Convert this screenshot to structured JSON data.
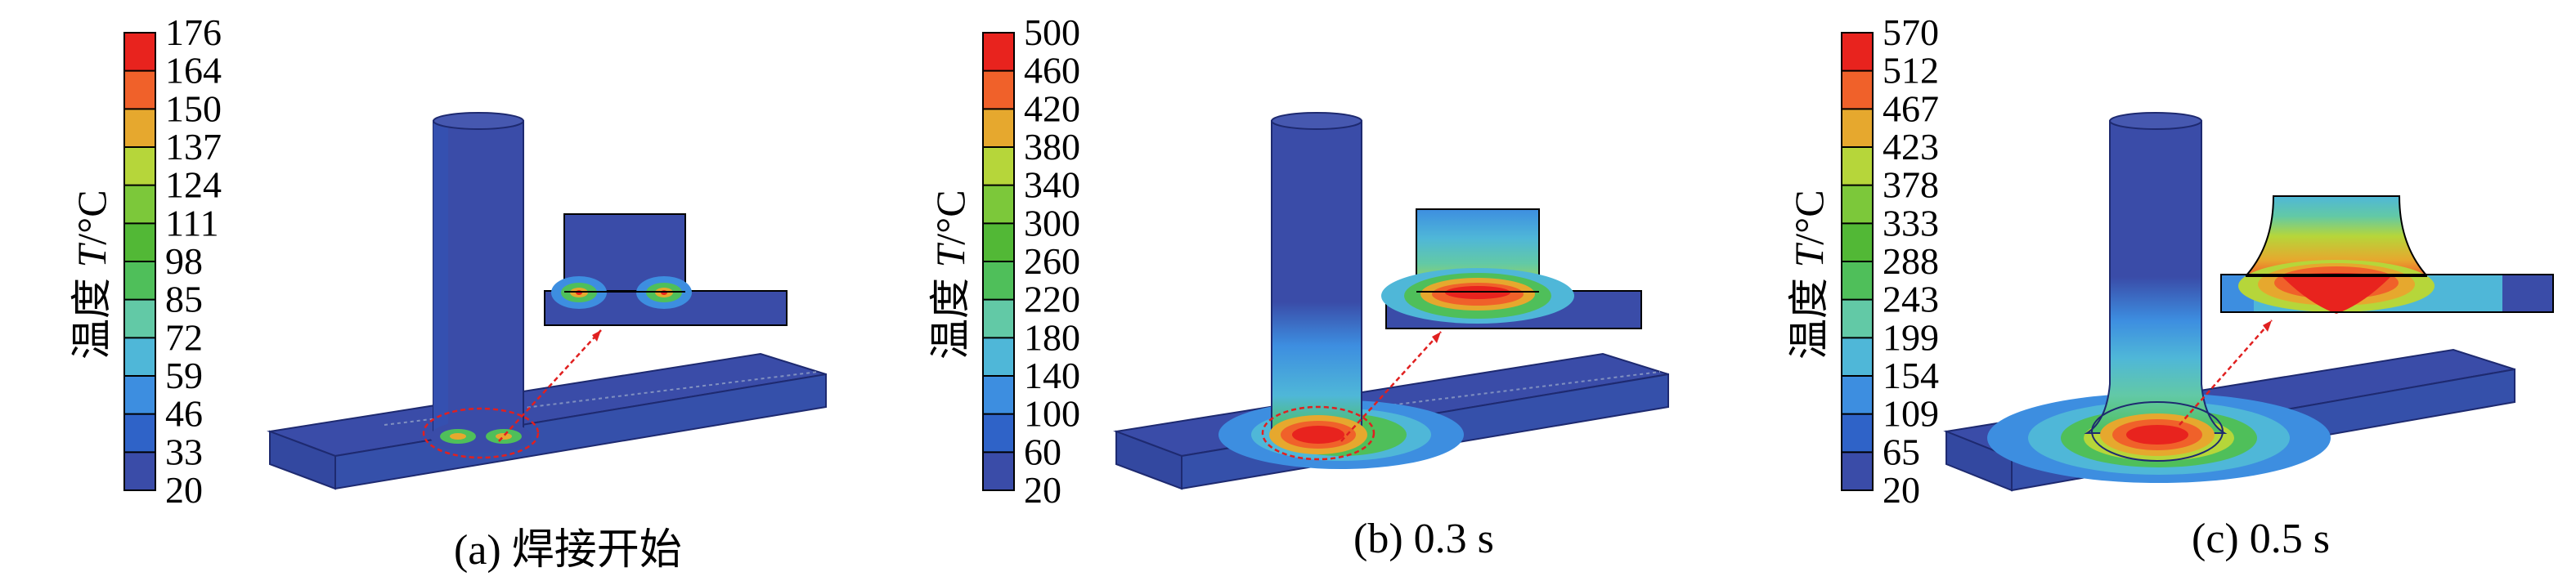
{
  "colorbar": {
    "title_cn": "温度",
    "title_var": "T",
    "title_unit": "/°C",
    "colors": [
      "#3a4ca8",
      "#2f63c8",
      "#3d8ee0",
      "#4fb7d8",
      "#62c9a6",
      "#4fbf5a",
      "#52b836",
      "#7cc83a",
      "#b6d63a",
      "#e6a82e",
      "#f0612a",
      "#e8231e"
    ]
  },
  "panels": [
    {
      "caption": "(a) 焊接开始",
      "ticks": [
        "176",
        "164",
        "150",
        "137",
        "124",
        "111",
        "98",
        "85",
        "72",
        "59",
        "46",
        "33",
        "20"
      ],
      "state": "start"
    },
    {
      "caption": "(b) 0.3 s",
      "ticks": [
        "500",
        "460",
        "420",
        "380",
        "340",
        "300",
        "260",
        "220",
        "180",
        "140",
        "100",
        "60",
        "20"
      ],
      "state": "mid"
    },
    {
      "caption": "(c) 0.5 s",
      "ticks": [
        "570",
        "512",
        "467",
        "423",
        "378",
        "333",
        "288",
        "243",
        "199",
        "154",
        "109",
        "65",
        "20"
      ],
      "state": "late"
    }
  ]
}
